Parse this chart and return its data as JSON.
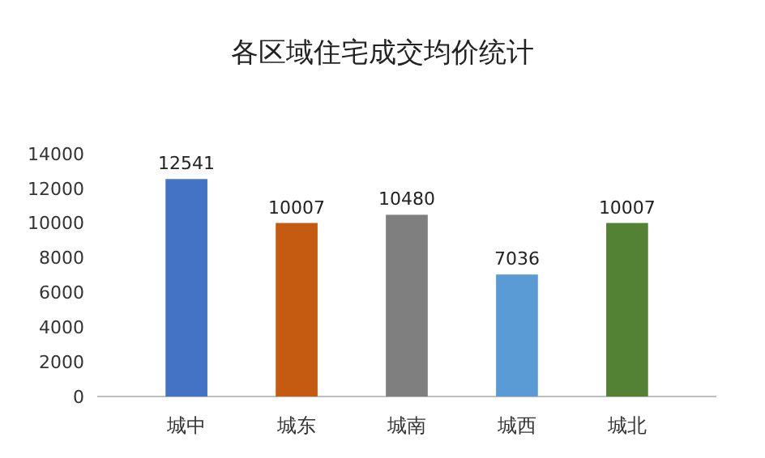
{
  "chart_data": {
    "type": "bar",
    "title": "各区域住宅成交均价统计",
    "categories": [
      "城中",
      "城东",
      "城南",
      "城西",
      "城北"
    ],
    "values": [
      12541,
      10007,
      10480,
      7036,
      10007
    ],
    "colors": [
      "#4472c4",
      "#c55a11",
      "#7f7f7f",
      "#5b9bd5",
      "#548235"
    ],
    "ylim": [
      0,
      14000
    ],
    "yticks": [
      0,
      2000,
      4000,
      6000,
      8000,
      10000,
      12000,
      14000
    ],
    "data_labels": true
  }
}
